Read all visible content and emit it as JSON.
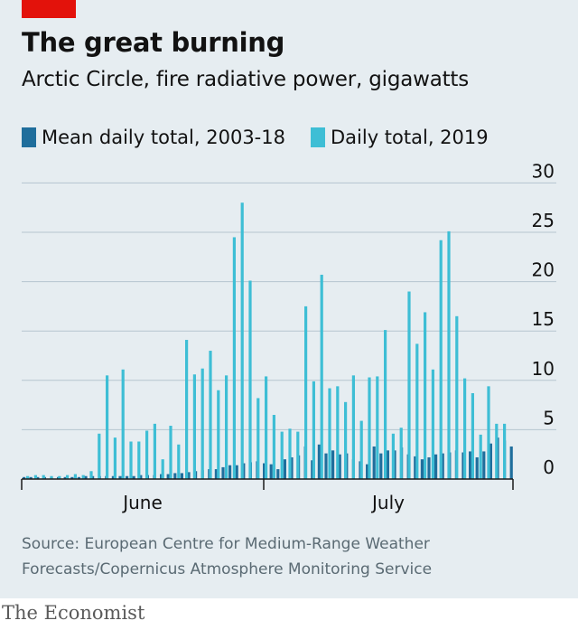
{
  "header": {
    "title": "The great burning",
    "subtitle": "Arctic Circle, fire radiative power, gigawatts"
  },
  "colors": {
    "mean": "#1f6e9c",
    "daily2019": "#3ebed5",
    "grid": "#b5c5cf",
    "axis": "#1a1a1a"
  },
  "chart_data": {
    "type": "bar",
    "ylim": [
      0,
      30
    ],
    "yticks": [
      0,
      5,
      10,
      15,
      20,
      25,
      30
    ],
    "xtick_labels": [
      "June",
      "July"
    ],
    "legend": [
      "Mean daily total, 2003-18",
      "Daily total, 2019"
    ],
    "series": [
      {
        "name": "Mean daily total, 2003-18",
        "values": [
          0.2,
          0.2,
          0.2,
          0.2,
          0.2,
          0.2,
          0.2,
          0.2,
          0.2,
          0.3,
          0.3,
          0.3,
          0.3,
          0.3,
          0.3,
          0.3,
          0.3,
          0.4,
          0.4,
          0.4,
          0.5,
          0.5,
          0.6,
          0.6,
          0.7,
          0.8,
          0.9,
          1.0,
          1.0,
          1.2,
          1.4,
          1.4,
          1.6,
          1.7,
          1.8,
          1.6,
          1.5,
          1.0,
          2.0,
          2.2,
          2.4,
          3.3,
          1.9,
          3.5,
          2.6,
          2.9,
          2.5,
          2.6,
          2.0,
          1.8,
          1.5,
          3.3,
          2.6,
          2.9,
          2.9,
          3.2,
          2.5,
          2.3,
          2.0,
          2.2,
          2.5,
          2.6,
          2.7,
          2.9,
          2.7,
          2.8,
          2.2,
          2.8,
          3.6,
          4.2,
          3.9,
          3.3
        ]
      },
      {
        "name": "Daily total, 2019",
        "values": [
          0.3,
          0.4,
          0.4,
          0.3,
          0.3,
          0.4,
          0.5,
          0.4,
          0.8,
          4.6,
          10.5,
          4.2,
          11.1,
          3.8,
          3.8,
          4.9,
          5.6,
          2.0,
          5.4,
          3.5,
          14.1,
          10.6,
          11.2,
          13.0,
          9.0,
          10.5,
          24.5,
          28.0,
          20.1,
          8.2,
          10.4,
          6.5,
          4.8,
          5.1,
          4.8,
          17.5,
          9.9,
          20.7,
          9.2,
          9.4,
          7.8,
          10.5,
          5.9,
          10.3,
          10.4,
          15.1,
          4.6,
          5.2,
          19.0,
          13.7,
          16.9,
          11.1,
          24.2,
          25.1,
          16.5,
          10.2,
          8.7,
          4.5,
          9.4,
          5.6,
          5.6,
          0.0
        ]
      }
    ]
  },
  "source": "Source: European Centre for Medium-Range Weather Forecasts/Copernicus Atmosphere Monitoring Service",
  "brand": "The Economist"
}
